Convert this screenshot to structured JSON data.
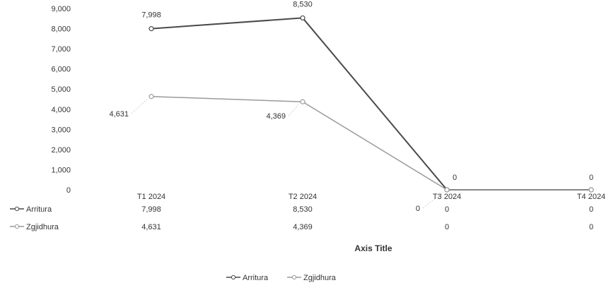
{
  "chart_data": {
    "type": "line",
    "title": "",
    "xlabel": "Axis Title",
    "ylabel": "",
    "ylim": [
      0,
      9000
    ],
    "y_ticks": [
      "0",
      "1,000",
      "2,000",
      "3,000",
      "4,000",
      "5,000",
      "6,000",
      "7,000",
      "8,000",
      "9,000"
    ],
    "categories": [
      "T1 2024",
      "T2 2024",
      "T3 2024",
      "T4 2024"
    ],
    "series": [
      {
        "name": "Arritura",
        "values": [
          7998,
          8530,
          0,
          0
        ],
        "labels": [
          "7,998",
          "8,530",
          "0",
          "0"
        ],
        "color": "#4a4a4a"
      },
      {
        "name": "Zgjidhura",
        "values": [
          4631,
          4369,
          0,
          0
        ],
        "labels": [
          "4,631",
          "4,369",
          "0",
          "0"
        ],
        "color": "#9a9a9a"
      }
    ],
    "grid": false,
    "legend_position": "bottom",
    "data_table": true
  }
}
